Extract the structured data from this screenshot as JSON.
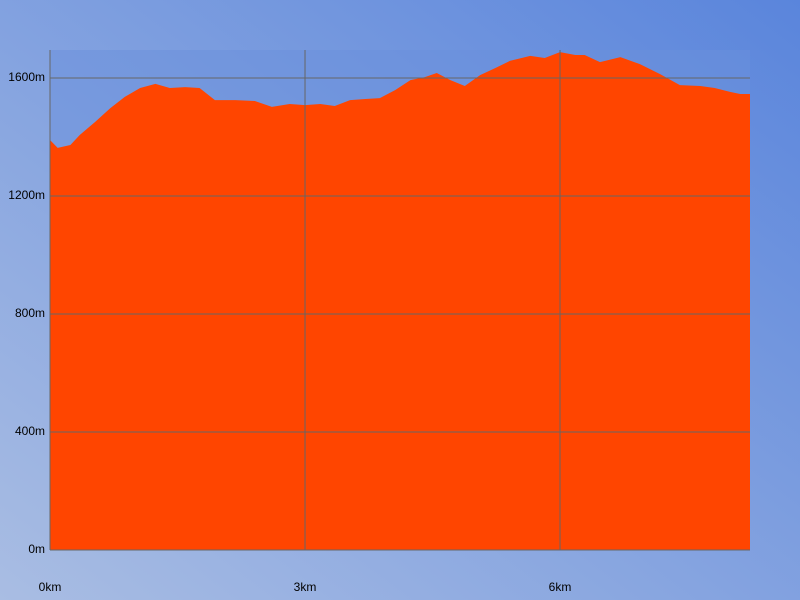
{
  "chart_data": {
    "type": "area",
    "color": "#ff4500",
    "x": [
      0,
      0.09,
      0.24,
      0.35,
      0.53,
      0.71,
      0.88,
      1.06,
      1.24,
      1.41,
      1.59,
      1.76,
      1.94,
      2.18,
      2.41,
      2.61,
      2.82,
      3.0,
      3.18,
      3.35,
      3.53,
      3.71,
      3.88,
      4.06,
      4.24,
      4.41,
      4.55,
      4.71,
      4.88,
      5.06,
      5.24,
      5.41,
      5.65,
      5.82,
      6.0,
      6.18,
      6.29,
      6.47,
      6.71,
      6.94,
      7.18,
      7.41,
      7.65,
      7.82,
      8.0,
      8.12,
      8.235
    ],
    "values": [
      1390,
      1363,
      1373,
      1407,
      1451,
      1498,
      1536,
      1566,
      1580,
      1566,
      1569,
      1566,
      1525,
      1525,
      1522,
      1502,
      1512,
      1508,
      1512,
      1505,
      1525,
      1529,
      1532,
      1559,
      1593,
      1603,
      1617,
      1593,
      1573,
      1610,
      1634,
      1658,
      1675,
      1668,
      1688,
      1678,
      1678,
      1654,
      1671,
      1647,
      1613,
      1576,
      1573,
      1566,
      1553,
      1546,
      1546
    ],
    "xlim": [
      0,
      8.235
    ],
    "xticks": [
      {
        "value": 0,
        "label": "0km"
      },
      {
        "value": 3,
        "label": "3km"
      },
      {
        "value": 6,
        "label": "6km"
      }
    ],
    "ylim": [
      0,
      1695
    ],
    "yticks": [
      {
        "value": 0,
        "label": "0m"
      },
      {
        "value": 400,
        "label": "400m"
      },
      {
        "value": 800,
        "label": "800m"
      },
      {
        "value": 1200,
        "label": "1200m"
      },
      {
        "value": 1600,
        "label": "1600m"
      }
    ],
    "grid": true
  }
}
